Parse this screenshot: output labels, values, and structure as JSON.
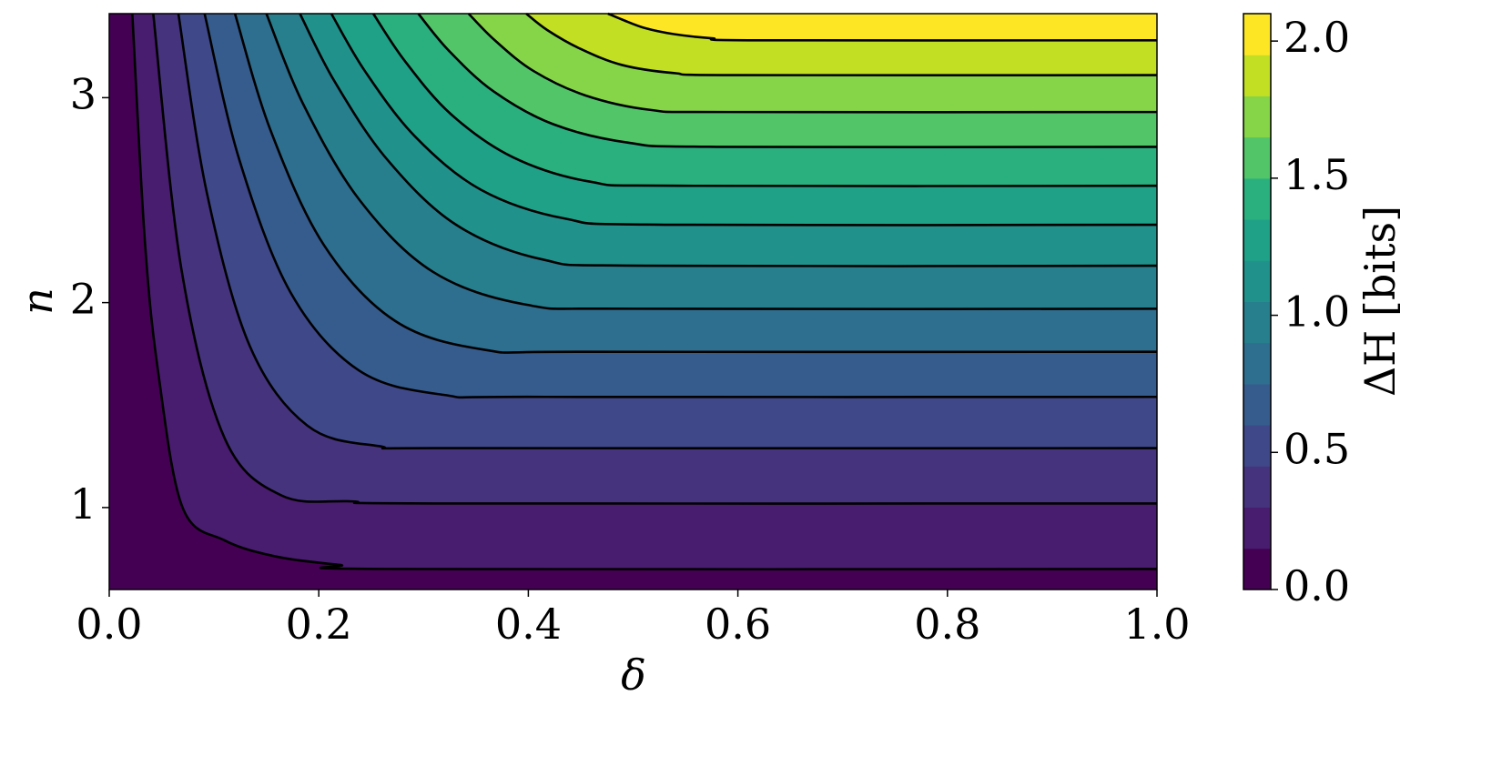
{
  "chart_data": {
    "type": "contour",
    "x_label": "δ",
    "y_label": "n",
    "colorbar_label": "ΔH [bits]",
    "xlim": [
      0,
      1
    ],
    "ylim": [
      0.6,
      3.41
    ],
    "xticks": [
      {
        "value": 0,
        "label": "0.0"
      },
      {
        "value": 0.2,
        "label": "0.2"
      },
      {
        "value": 0.4,
        "label": "0.4"
      },
      {
        "value": 0.6,
        "label": "0.6"
      },
      {
        "value": 0.8,
        "label": "0.8"
      },
      {
        "value": 1,
        "label": "1.0"
      }
    ],
    "yticks": [
      1,
      2,
      3
    ],
    "levels": [
      0,
      0.15,
      0.3,
      0.45,
      0.6,
      0.75,
      0.9,
      1.05,
      1.2,
      1.35,
      1.5,
      1.65,
      1.8,
      1.95,
      2.1
    ],
    "colorbar_ticks": [
      {
        "value": 0,
        "label": "0.0"
      },
      {
        "value": 0.5,
        "label": "0.5"
      },
      {
        "value": 1,
        "label": "1.0"
      },
      {
        "value": 1.5,
        "label": "1.5"
      },
      {
        "value": 2,
        "label": "2.0"
      }
    ],
    "colors": [
      "#440154",
      "#481c6e",
      "#46337e",
      "#3f4889",
      "#365c8d",
      "#2e6e8e",
      "#277f8e",
      "#21918c",
      "#1fa188",
      "#2ab07f",
      "#52c569",
      "#86d549",
      "#c2df23",
      "#fde725"
    ],
    "line_color": "#000000",
    "contours": [
      {
        "x": [
          0.022,
          0.034,
          0.047,
          0.07,
          0.11,
          0.16,
          0.22,
          0.27,
          1
        ],
        "y": [
          3.41,
          2.3,
          1.65,
          1.0,
          0.84,
          0.76,
          0.72,
          0.7,
          0.7
        ]
      },
      {
        "x": [
          0.042,
          0.069,
          0.11,
          0.164,
          0.232,
          0.313,
          1
        ],
        "y": [
          3.41,
          2.16,
          1.34,
          1.06,
          1.03,
          1.02,
          1.02
        ]
      },
      {
        "x": [
          0.066,
          0.093,
          0.134,
          0.189,
          0.257,
          0.339,
          1
        ],
        "y": [
          3.41,
          2.54,
          1.79,
          1.4,
          1.3,
          1.29,
          1.29
        ]
      },
      {
        "x": [
          0.091,
          0.124,
          0.173,
          0.238,
          0.319,
          0.417,
          1
        ],
        "y": [
          3.41,
          2.7,
          2.05,
          1.67,
          1.55,
          1.54,
          1.54
        ]
      },
      {
        "x": [
          0.12,
          0.154,
          0.205,
          0.273,
          0.358,
          0.46,
          1
        ],
        "y": [
          3.41,
          2.84,
          2.28,
          1.91,
          1.77,
          1.76,
          1.76
        ]
      },
      {
        "x": [
          0.15,
          0.185,
          0.239,
          0.309,
          0.398,
          0.504,
          1
        ],
        "y": [
          3.41,
          2.97,
          2.5,
          2.15,
          1.99,
          1.97,
          1.97
        ]
      },
      {
        "x": [
          0.182,
          0.215,
          0.265,
          0.331,
          0.414,
          0.513,
          1
        ],
        "y": [
          3.41,
          3.08,
          2.7,
          2.38,
          2.21,
          2.18,
          2.18
        ]
      },
      {
        "x": [
          0.212,
          0.244,
          0.292,
          0.355,
          0.435,
          0.53,
          1
        ],
        "y": [
          3.41,
          3.13,
          2.81,
          2.55,
          2.41,
          2.38,
          2.38
        ]
      },
      {
        "x": [
          0.252,
          0.282,
          0.326,
          0.385,
          0.459,
          0.547,
          1
        ],
        "y": [
          3.41,
          3.18,
          2.92,
          2.71,
          2.59,
          2.57,
          2.57
        ]
      },
      {
        "x": [
          0.295,
          0.324,
          0.367,
          0.424,
          0.496,
          0.582,
          1
        ],
        "y": [
          3.41,
          3.23,
          3.03,
          2.87,
          2.78,
          2.76,
          2.76
        ]
      },
      {
        "x": [
          0.343,
          0.368,
          0.405,
          0.455,
          0.517,
          0.591,
          1
        ],
        "y": [
          3.41,
          3.28,
          3.13,
          3.01,
          2.94,
          2.93,
          2.93
        ]
      },
      {
        "x": [
          0.398,
          0.418,
          0.449,
          0.489,
          0.539,
          0.6,
          1
        ],
        "y": [
          3.41,
          3.33,
          3.24,
          3.16,
          3.12,
          3.11,
          3.11
        ]
      },
      {
        "x": [
          0.476,
          0.49,
          0.511,
          0.539,
          0.575,
          0.617,
          1
        ],
        "y": [
          3.41,
          3.38,
          3.34,
          3.31,
          3.29,
          3.28,
          3.28
        ]
      }
    ]
  }
}
